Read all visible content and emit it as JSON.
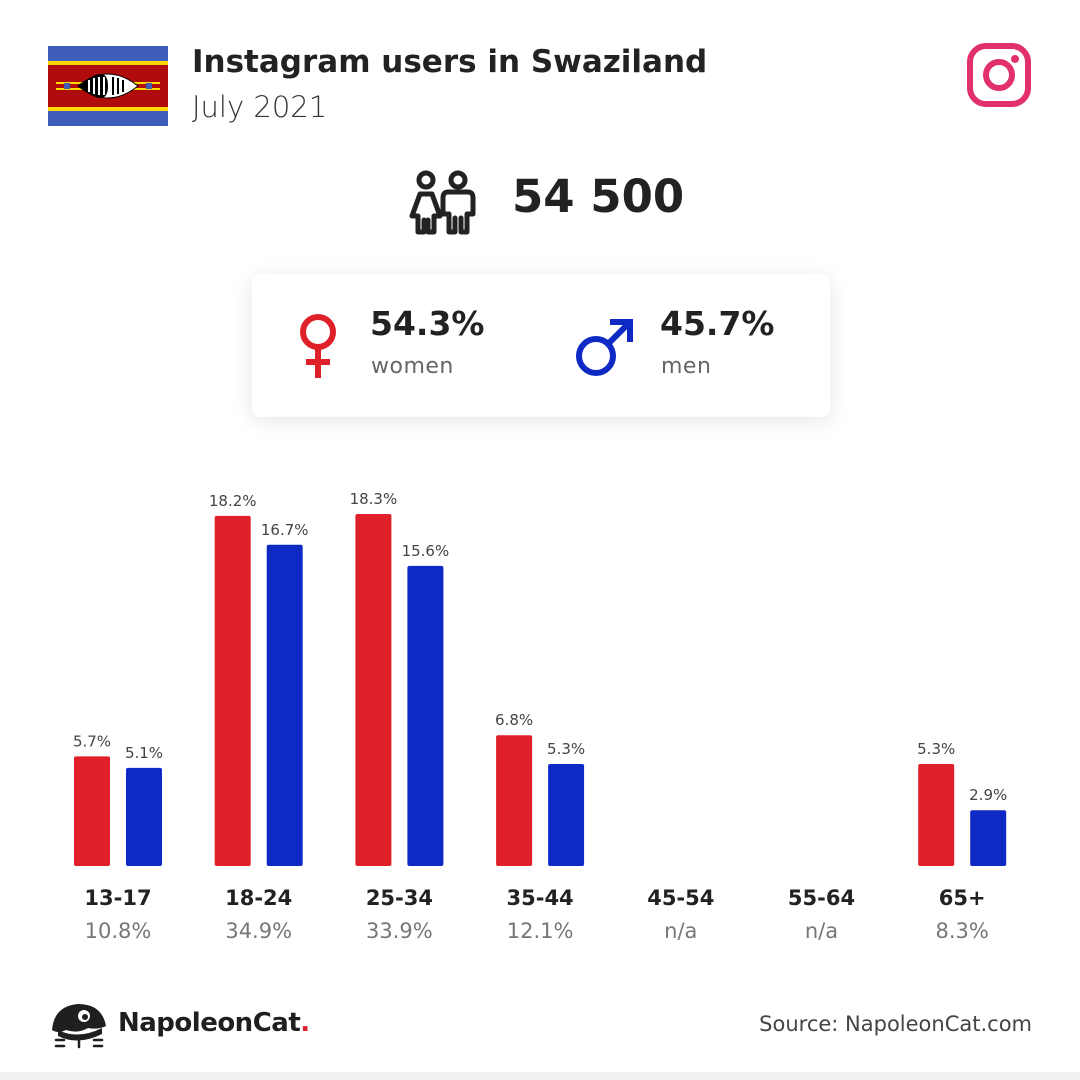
{
  "header": {
    "title": "Instagram users in Swaziland",
    "subtitle": "July 2021"
  },
  "summary": {
    "total_users": "54 500",
    "women_pct": "54.3%",
    "women_label": "women",
    "men_pct": "45.7%",
    "men_label": "men"
  },
  "colors": {
    "women": "#e02029",
    "men": "#0f2ac4",
    "instagram": "#e1306c"
  },
  "icons": {
    "flag": "swaziland-flag-icon",
    "platform": "instagram-icon",
    "people": "people-icon",
    "female": "female-symbol-icon",
    "male": "male-symbol-icon",
    "brand": "napoleoncat-logo-icon"
  },
  "chart_data": {
    "type": "bar",
    "categories": [
      "13-17",
      "18-24",
      "25-34",
      "35-44",
      "45-54",
      "55-64",
      "65+"
    ],
    "group_totals": [
      "10.8%",
      "34.9%",
      "33.9%",
      "12.1%",
      "n/a",
      "n/a",
      "8.3%"
    ],
    "series": [
      {
        "name": "women",
        "values": [
          5.7,
          18.2,
          18.3,
          6.8,
          null,
          null,
          5.3
        ],
        "labels": [
          "5.7%",
          "18.2%",
          "18.3%",
          "6.8%",
          "",
          "",
          "5.3%"
        ]
      },
      {
        "name": "men",
        "values": [
          5.1,
          16.7,
          15.6,
          5.3,
          null,
          null,
          2.9
        ],
        "labels": [
          "5.1%",
          "16.7%",
          "15.6%",
          "5.3%",
          "",
          "",
          "2.9%"
        ]
      }
    ],
    "ylim": [
      0,
      18.3
    ],
    "grid": false,
    "legend": "none"
  },
  "footer": {
    "brand_name": "NapoleonCat",
    "brand_dot": ".",
    "source": "Source: NapoleonCat.com"
  }
}
